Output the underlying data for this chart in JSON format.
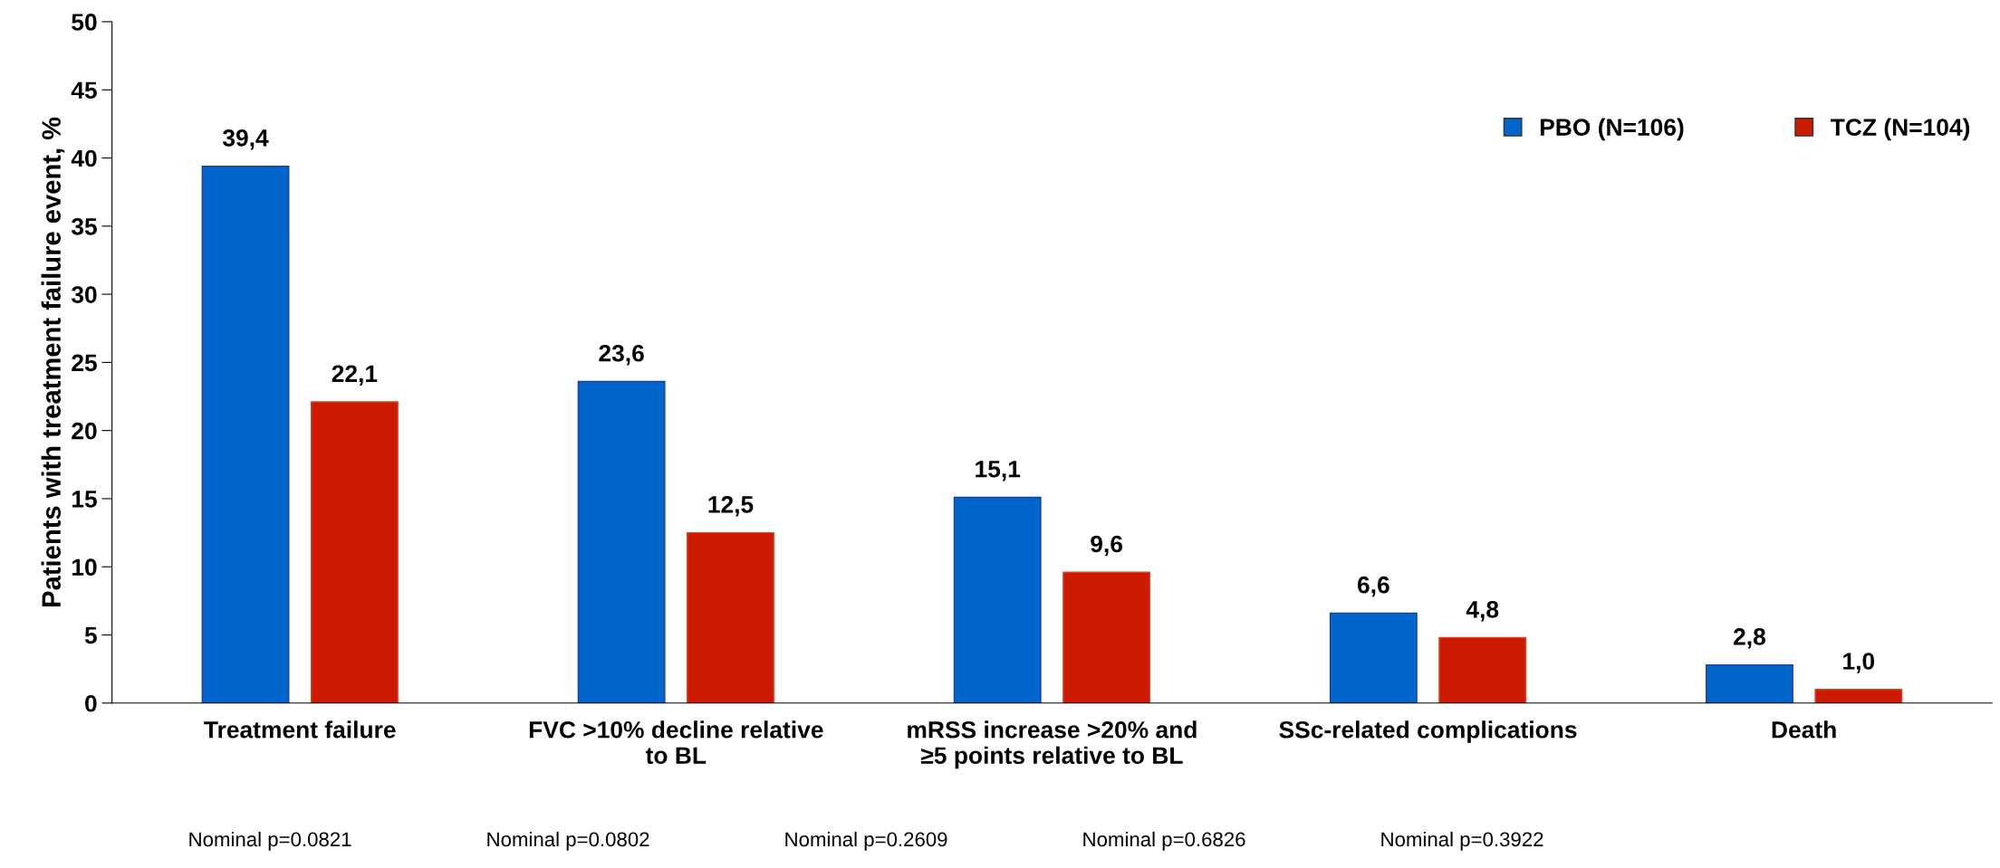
{
  "chart_data": {
    "type": "bar",
    "ylabel": "Patients with treatment failure event, %",
    "categories": [
      "Treatment failure",
      "FVC >10% decline relative\nto BL",
      "mRSS increase >20% and\n≥5 points relative to BL",
      "SSc-related complications",
      "Death"
    ],
    "series": [
      {
        "name": "PBO (N=106)",
        "color": "#0066cc",
        "values": [
          39.4,
          23.6,
          15.1,
          6.6,
          2.8
        ],
        "value_labels": [
          "39,4",
          "23,6",
          "15,1",
          "6,6",
          "2,8"
        ]
      },
      {
        "name": "TCZ (N=104)",
        "color": "#cc1a00",
        "values": [
          22.1,
          12.5,
          9.6,
          4.8,
          1.0
        ],
        "value_labels": [
          "22,1",
          "12,5",
          "9,6",
          "4,8",
          "1,0"
        ]
      }
    ],
    "ylim": [
      0,
      50
    ],
    "yticks": [
      0,
      5,
      10,
      15,
      20,
      25,
      30,
      35,
      40,
      45,
      50
    ],
    "grid": false,
    "legend": "top right",
    "annotations": [
      "Nominal p=0.0821",
      "Nominal p=0.0802",
      "Nominal p=0.2609",
      "Nominal p=0.6826",
      "Nominal p=0.3922"
    ]
  }
}
